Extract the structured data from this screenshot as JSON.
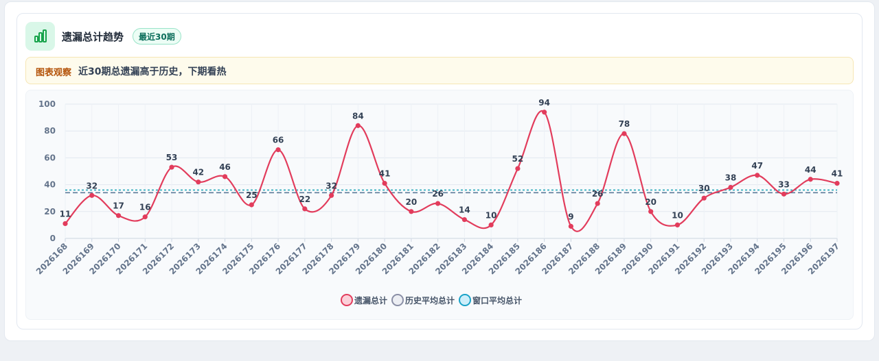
{
  "header": {
    "title": "遗漏总计趋势",
    "badge": "最近30期",
    "icon": "bar-chart-icon"
  },
  "observation": {
    "label": "图表观察",
    "text": "近30期总遗漏高于历史，下期看热"
  },
  "legend": [
    {
      "label": "遗漏总计",
      "fill": "#fbd0d9",
      "stroke": "#e23c5c"
    },
    {
      "label": "历史平均总计",
      "fill": "#eceef3",
      "stroke": "#8a8fa6"
    },
    {
      "label": "窗口平均总计",
      "fill": "#cdeefa",
      "stroke": "#1aa3c8"
    }
  ],
  "colors": {
    "line": "#e23c5c",
    "historyAvg": "#5b7a99",
    "windowAvg": "#22a6b8"
  },
  "chart_data": {
    "type": "line",
    "title": "",
    "xlabel": "",
    "ylabel": "",
    "ylim": [
      0,
      100
    ],
    "yticks": [
      0,
      20,
      40,
      60,
      80,
      100
    ],
    "grid": true,
    "legend_position": "bottom",
    "categories": [
      "2026168",
      "2026169",
      "2026170",
      "2026171",
      "2026172",
      "2026173",
      "2026174",
      "2026175",
      "2026176",
      "2026177",
      "2026178",
      "2026179",
      "2026180",
      "2026181",
      "2026182",
      "2026183",
      "2026184",
      "2026185",
      "2026186",
      "2026187",
      "2026188",
      "2026189",
      "2026190",
      "2026191",
      "2026192",
      "2026193",
      "2026194",
      "2026195",
      "2026196",
      "2026197"
    ],
    "series": [
      {
        "name": "遗漏总计",
        "values": [
          11,
          32,
          17,
          16,
          53,
          42,
          46,
          25,
          66,
          22,
          32,
          84,
          41,
          20,
          26,
          14,
          10,
          52,
          94,
          9,
          26,
          78,
          20,
          10,
          30,
          38,
          47,
          33,
          44,
          41
        ]
      }
    ],
    "reference_lines": [
      {
        "name": "历史平均总计",
        "value": 34
      },
      {
        "name": "窗口平均总计",
        "value": 36
      }
    ]
  }
}
